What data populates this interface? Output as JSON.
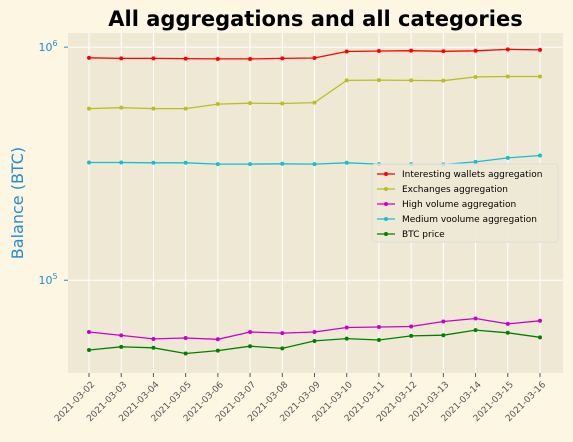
{
  "chart_data": {
    "type": "line",
    "title": "All aggregations and all categories",
    "xlabel": "",
    "ylabel": "Balance (BTC)",
    "yscale": "log",
    "ylim": [
      40000,
      1150000
    ],
    "y_ticks": [
      {
        "value": 100000,
        "base": "10",
        "exp": "5"
      },
      {
        "value": 1000000,
        "base": "10",
        "exp": "6"
      }
    ],
    "x": [
      "2021-03-02",
      "2021-03-03",
      "2021-03-04",
      "2021-03-05",
      "2021-03-06",
      "2021-03-07",
      "2021-03-08",
      "2021-03-09",
      "2021-03-10",
      "2021-03-11",
      "2021-03-12",
      "2021-03-13",
      "2021-03-14",
      "2021-03-15",
      "2021-03-16"
    ],
    "grid": true,
    "legend_position": "right",
    "series": [
      {
        "name": "Interesting wallets aggregation",
        "color": "#ff0000",
        "values": [
          900000,
          895000,
          895000,
          893000,
          890000,
          890000,
          895000,
          898000,
          958000,
          963000,
          966000,
          960000,
          965000,
          978000,
          973000
        ]
      },
      {
        "name": "Exchanges aggregation",
        "color": "#bcbd22",
        "values": [
          545000,
          550000,
          545000,
          545000,
          570000,
          575000,
          573000,
          578000,
          720000,
          722000,
          720000,
          718000,
          745000,
          748000,
          748000
        ]
      },
      {
        "name": "High volume aggregation",
        "color": "#cc00cc",
        "values": [
          60000,
          58000,
          56000,
          56500,
          55800,
          60000,
          59300,
          60000,
          62700,
          63000,
          63300,
          66500,
          68500,
          65000,
          67000
        ]
      },
      {
        "name": "Medium voolume aggregation",
        "color": "#17becf",
        "values": [
          320000,
          320000,
          319000,
          319000,
          315000,
          315000,
          316000,
          315000,
          319000,
          315000,
          315000,
          314000,
          322000,
          335000,
          343000
        ]
      },
      {
        "name": "BTC price",
        "color": "#008000",
        "values": [
          50200,
          51800,
          51300,
          48500,
          49900,
          52100,
          51000,
          54900,
          56200,
          55400,
          57700,
          58100,
          61100,
          59500,
          56900
        ]
      }
    ]
  },
  "colors": {
    "page_bg": "#fdf6e3",
    "plot_bg": "#eee8d5",
    "grid": "#ffffff",
    "ylabel": "#268bd2",
    "ytick": "#268bd2",
    "xtick": "#555555"
  }
}
